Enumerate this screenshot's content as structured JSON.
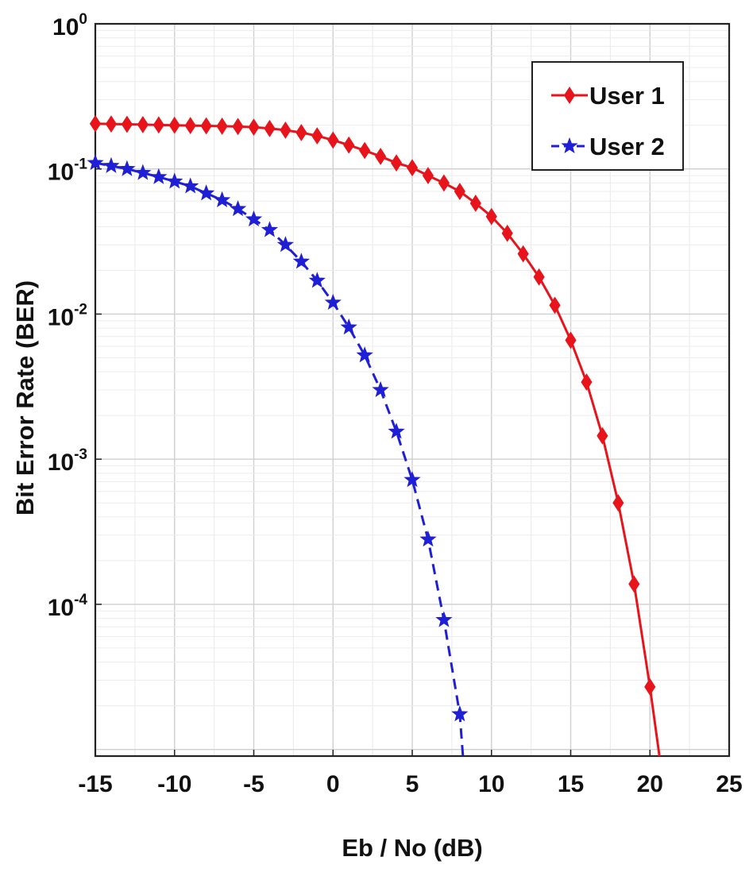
{
  "chart_data": {
    "type": "line",
    "title": "",
    "xlabel": "Eb / No (dB)",
    "ylabel": "Bit Error Rate (BER)",
    "xlim": [
      -15,
      25
    ],
    "ylim": [
      9e-06,
      1
    ],
    "yscale": "log",
    "grid": true,
    "legend_position": "top-right",
    "x_ticks": [
      {
        "value": -15,
        "label": "-15"
      },
      {
        "value": -10,
        "label": "-10"
      },
      {
        "value": -5,
        "label": "-5"
      },
      {
        "value": 0,
        "label": "0"
      },
      {
        "value": 5,
        "label": "5"
      },
      {
        "value": 10,
        "label": "10"
      },
      {
        "value": 15,
        "label": "15"
      },
      {
        "value": 20,
        "label": "20"
      },
      {
        "value": 25,
        "label": "25"
      }
    ],
    "y_ticks": [
      {
        "value": 1,
        "base": "10",
        "exp": "0"
      },
      {
        "value": 0.1,
        "base": "10",
        "exp": "-1"
      },
      {
        "value": 0.01,
        "base": "10",
        "exp": "-2"
      },
      {
        "value": 0.001,
        "base": "10",
        "exp": "-3"
      },
      {
        "value": 0.0001,
        "base": "10",
        "exp": "-4"
      }
    ],
    "series": [
      {
        "name": "User 1",
        "color": "#e8141b",
        "line_style": "solid",
        "marker": "diamond",
        "x": [
          -15,
          -14,
          -13,
          -12,
          -11,
          -10,
          -9,
          -8,
          -7,
          -6,
          -5,
          -4,
          -3,
          -2,
          -1,
          0,
          1,
          2,
          3,
          4,
          5,
          6,
          7,
          8,
          9,
          10,
          11,
          12,
          13,
          14,
          15,
          16,
          17,
          18,
          19,
          20,
          20.6
        ],
        "y": [
          0.205,
          0.204,
          0.203,
          0.202,
          0.201,
          0.2,
          0.199,
          0.198,
          0.197,
          0.196,
          0.194,
          0.19,
          0.185,
          0.178,
          0.169,
          0.158,
          0.146,
          0.134,
          0.122,
          0.11,
          0.102,
          0.09,
          0.08,
          0.07,
          0.058,
          0.047,
          0.036,
          0.026,
          0.018,
          0.0115,
          0.0066,
          0.0034,
          0.00145,
          0.0005,
          0.000138,
          2.7e-05,
          9e-06
        ]
      },
      {
        "name": "User 2",
        "color": "#1f1fd6",
        "line_style": "dashed",
        "marker": "star",
        "x": [
          -15,
          -14,
          -13,
          -12,
          -11,
          -10,
          -9,
          -8,
          -7,
          -6,
          -5,
          -4,
          -3,
          -2,
          -1,
          0,
          1,
          2,
          3,
          4,
          5,
          6,
          7,
          8,
          8.2
        ],
        "y": [
          0.11,
          0.105,
          0.1,
          0.094,
          0.088,
          0.082,
          0.076,
          0.068,
          0.061,
          0.053,
          0.045,
          0.038,
          0.03,
          0.023,
          0.017,
          0.012,
          0.0081,
          0.0052,
          0.003,
          0.00155,
          0.00072,
          0.00028,
          7.8e-05,
          1.75e-05,
          9e-06
        ]
      }
    ]
  }
}
